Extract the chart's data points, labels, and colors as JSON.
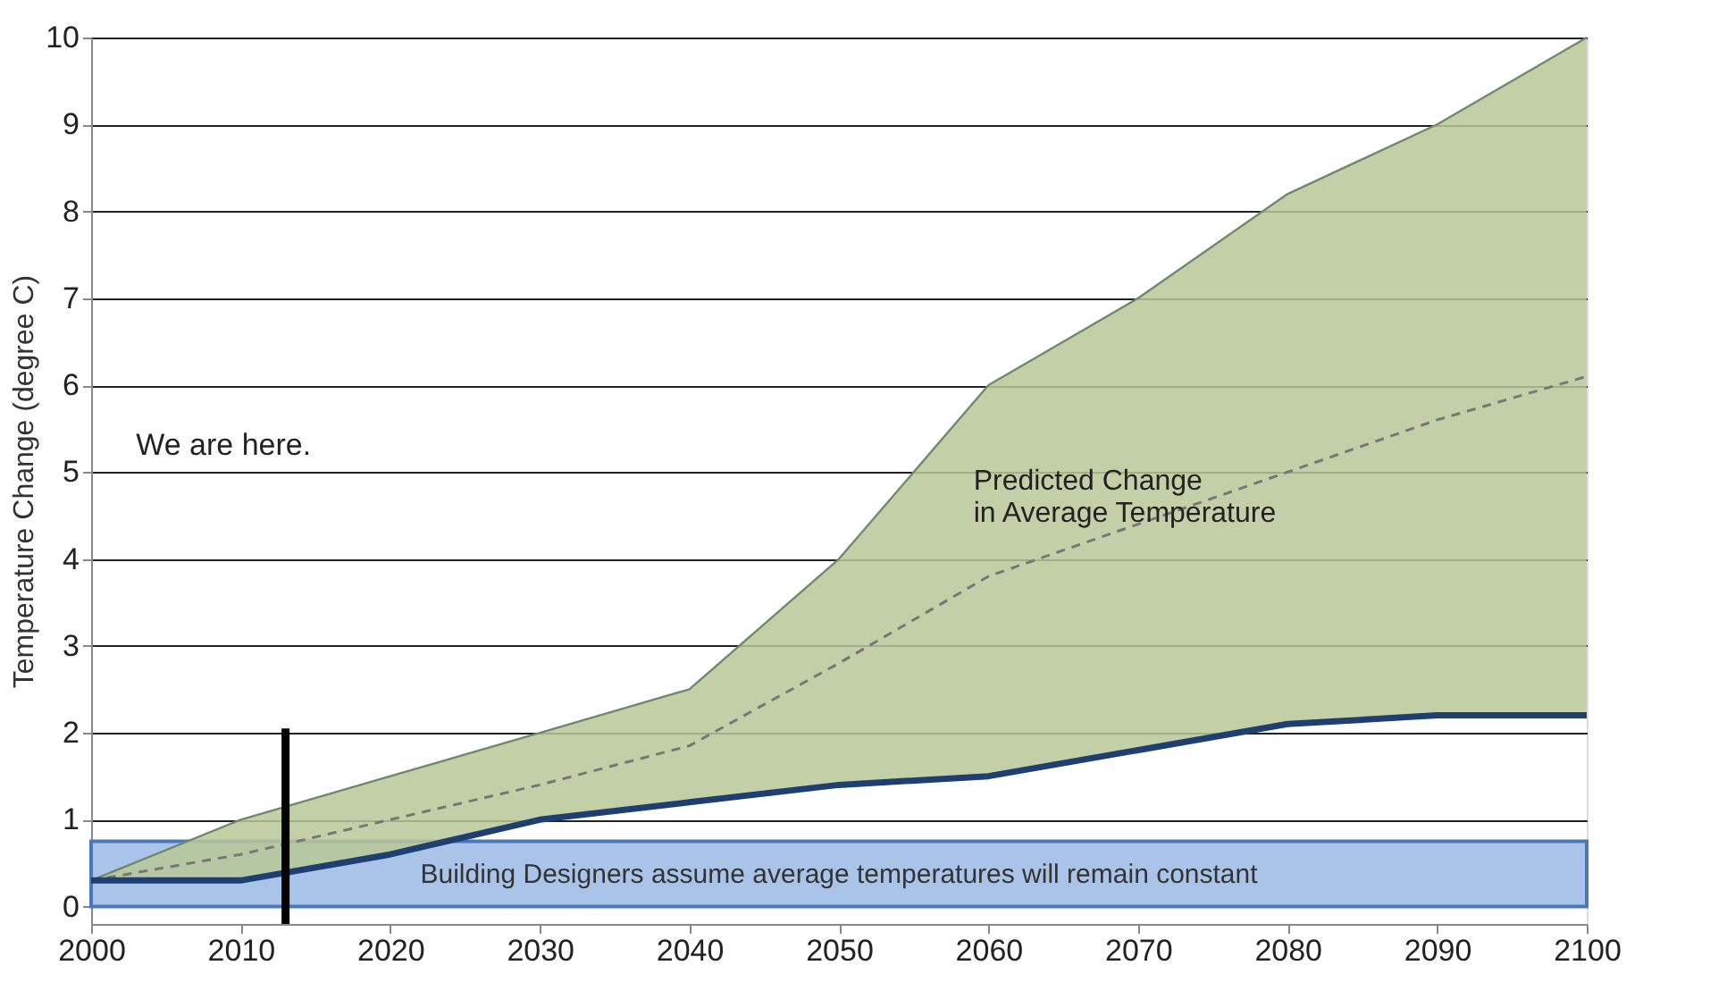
{
  "chart_data": {
    "type": "line",
    "ylabel": "Temperature Change (degree C)",
    "x": [
      2000,
      2010,
      2020,
      2030,
      2040,
      2050,
      2060,
      2070,
      2080,
      2090,
      2100
    ],
    "series": [
      {
        "color": "#777777",
        "line_style": "dashed",
        "values": [
          0.3,
          0.6,
          1.0,
          1.4,
          1.85,
          2.8,
          3.8,
          4.4,
          5.0,
          5.6,
          6.1
        ],
        "lower": [
          0.3,
          0.3,
          0.6,
          1.0,
          1.2,
          1.4,
          1.5,
          1.8,
          2.1,
          2.2,
          2.2
        ],
        "upper": [
          0.3,
          1.0,
          1.5,
          2.0,
          2.5,
          4.0,
          6.0,
          7.0,
          8.2,
          9.0,
          10.0
        ]
      },
      {
        "type": "line",
        "color": "#6f8a6a",
        "line_style": "solid",
        "values": [
          0.3,
          1.0,
          1.5,
          2.0,
          2.5,
          4.0,
          6.0,
          7.0,
          8.2,
          9.0,
          10.0
        ]
      },
      {
        "type": "line",
        "color": "#1f3f73",
        "line_style": "solid",
        "values": [
          0.3,
          0.3,
          0.6,
          1.0,
          1.2,
          1.4,
          1.5,
          1.8,
          2.1,
          2.2,
          2.2
        ]
      },
      {
        "color": "#000000",
        "line_style": "solid",
        "x": [
          2013,
          2013
        ],
        "values": [
          -0.2,
          2.05
        ]
      }
    ],
    "bands": [
      {
        "axis": "y",
        "from": 0,
        "to": 0.75,
        "color": "#a9c4e8",
        "label": "Building Designers assume average temperatures will remain constant"
      }
    ],
    "annotations": [
      "We are here.",
      "Predicted Change\nin Average Temperature"
    ],
    "xlim": [
      2000,
      2100
    ],
    "xticks": [
      2000,
      2010,
      2020,
      2030,
      2040,
      2050,
      2060,
      2070,
      2080,
      2090,
      2100
    ],
    "ylim": [
      -0.2,
      10
    ],
    "yticks": [
      0,
      1,
      2,
      3,
      4,
      5,
      6,
      7,
      8,
      9,
      10
    ],
    "grid": "y",
    "marker": "none"
  }
}
